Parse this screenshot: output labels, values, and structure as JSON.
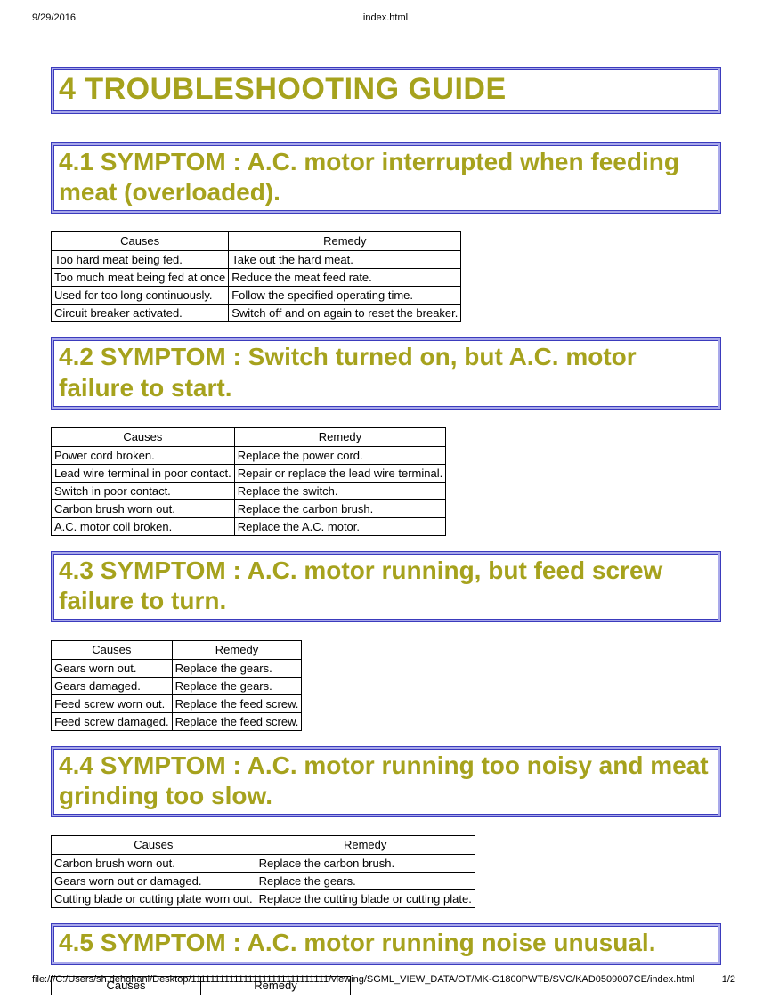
{
  "page": {
    "date": "9/29/2016",
    "doc_title": "index.html",
    "footer_path": "file:///C:/Users/sh.dehghani/Desktop/11111111111111111111111111111/viewing/SGML_VIEW_DATA/OT/MK-G1800PWTB/SVC/KAD0509007CE/index.html",
    "page_number": "1/2"
  },
  "colors": {
    "heading_text": "#a6a21d",
    "heading_border": "#3b3bbd",
    "heading_border_gap": "#a9a9ea",
    "table_border": "#000000"
  },
  "main_heading": "4 TROUBLESHOOTING GUIDE",
  "sections": [
    {
      "title": "4.1 SYMPTOM : A.C. motor interrupted when feeding meat (overloaded).",
      "table": {
        "headers": [
          "Causes",
          "Remedy"
        ],
        "rows": [
          [
            "Too hard meat being fed.",
            "Take out the hard meat."
          ],
          [
            "Too much meat being fed at once",
            "Reduce the meat feed rate."
          ],
          [
            "Used for too long continuously.",
            "Follow the specified operating time."
          ],
          [
            "Circuit breaker activated.",
            "Switch off and on again to reset the breaker."
          ]
        ]
      }
    },
    {
      "title": "4.2 SYMPTOM : Switch turned on, but A.C. motor failure to start.",
      "table": {
        "headers": [
          "Causes",
          "Remedy"
        ],
        "rows": [
          [
            "Power cord broken.",
            "Replace the power cord."
          ],
          [
            "Lead wire terminal in poor contact.",
            "Repair or replace the lead wire terminal."
          ],
          [
            "Switch in poor contact.",
            "Replace the switch."
          ],
          [
            "Carbon brush worn out.",
            "Replace the carbon brush."
          ],
          [
            "A.C. motor coil broken.",
            "Replace the A.C. motor."
          ]
        ]
      }
    },
    {
      "title": "4.3 SYMPTOM : A.C. motor running, but feed screw failure to turn.",
      "table": {
        "headers": [
          "Causes",
          "Remedy"
        ],
        "rows": [
          [
            "Gears worn out.",
            "Replace the gears."
          ],
          [
            "Gears damaged.",
            "Replace the gears."
          ],
          [
            "Feed screw worn out.",
            "Replace the feed screw."
          ],
          [
            "Feed screw damaged.",
            "Replace the feed screw."
          ]
        ]
      }
    },
    {
      "title": "4.4 SYMPTOM : A.C. motor running too noisy and meat grinding too slow.",
      "table": {
        "headers": [
          "Causes",
          "Remedy"
        ],
        "rows": [
          [
            "Carbon brush worn out.",
            "Replace the carbon brush."
          ],
          [
            "Gears worn out or damaged.",
            "Replace the gears."
          ],
          [
            "Cutting blade or cutting plate worn out.",
            "Replace the cutting blade or cutting plate."
          ]
        ]
      }
    },
    {
      "title": "4.5 SYMPTOM : A.C. motor running noise unusual.",
      "table": {
        "headers": [
          "Causes",
          "Remedy"
        ],
        "rows": []
      }
    }
  ]
}
